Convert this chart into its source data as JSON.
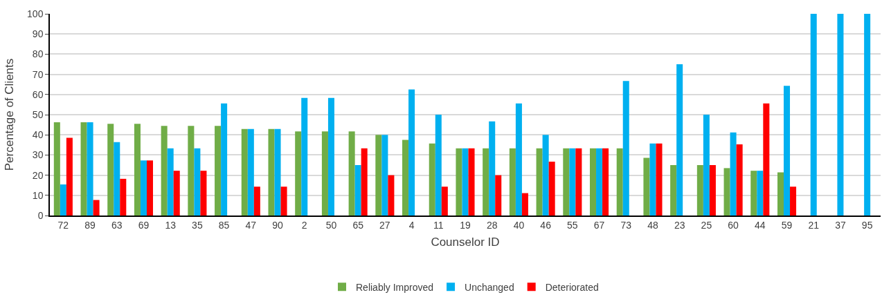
{
  "chart_data": {
    "type": "bar",
    "xlabel": "Counselor ID",
    "ylabel": "Percentage of Clients",
    "categories": [
      "72",
      "89",
      "63",
      "69",
      "13",
      "35",
      "85",
      "47",
      "90",
      "2",
      "50",
      "65",
      "27",
      "4",
      "11",
      "19",
      "28",
      "40",
      "46",
      "55",
      "67",
      "73",
      "48",
      "23",
      "25",
      "60",
      "44",
      "59",
      "21",
      "37",
      "95"
    ],
    "series": [
      {
        "name": "Reliably Improved",
        "color": "#70ad47",
        "values": [
          46.2,
          46.2,
          45.5,
          45.5,
          44.4,
          44.4,
          44.4,
          42.9,
          42.9,
          41.7,
          41.7,
          41.7,
          40,
          37.5,
          35.7,
          33.3,
          33.3,
          33.3,
          33.3,
          33.3,
          33.3,
          33.3,
          28.6,
          25,
          25,
          23.5,
          22.2,
          21.4,
          0,
          0,
          0
        ]
      },
      {
        "name": "Unchanged",
        "color": "#00b0f0",
        "values": [
          15.4,
          46.2,
          36.4,
          27.3,
          33.3,
          33.3,
          55.6,
          42.9,
          42.9,
          58.3,
          58.3,
          25,
          40,
          62.5,
          50,
          33.3,
          46.7,
          55.6,
          40,
          33.3,
          33.3,
          66.7,
          35.7,
          75,
          50,
          41.2,
          22.2,
          64.3,
          100,
          100,
          100
        ]
      },
      {
        "name": "Deteriorated",
        "color": "#ff0000",
        "values": [
          38.5,
          7.7,
          18.2,
          27.3,
          22.2,
          22.2,
          0,
          14.3,
          14.3,
          0,
          0,
          33.3,
          20,
          0,
          14.3,
          33.3,
          20,
          11.1,
          26.7,
          33.3,
          33.3,
          0,
          35.7,
          0,
          25,
          35.3,
          55.6,
          14.3,
          0,
          0,
          0
        ]
      }
    ],
    "ylim": [
      0,
      100
    ],
    "yticks": [
      0,
      10,
      20,
      30,
      40,
      50,
      60,
      70,
      80,
      90,
      100
    ],
    "grid": "y",
    "legend": "bottom"
  }
}
